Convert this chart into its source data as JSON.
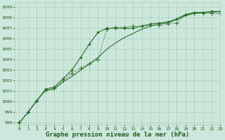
{
  "title": "Graphe pression niveau de la mer (hPa)",
  "background_color": "#cce8dc",
  "grid_color": "#aacfbe",
  "text_color": "#1e5c1e",
  "xlim": [
    -0.5,
    23
  ],
  "ylim": [
    997.8,
    1009.5
  ],
  "yticks": [
    998,
    999,
    1000,
    1001,
    1002,
    1003,
    1004,
    1005,
    1006,
    1007,
    1008,
    1009
  ],
  "xticks": [
    0,
    1,
    2,
    3,
    4,
    5,
    6,
    7,
    8,
    9,
    10,
    11,
    12,
    13,
    14,
    15,
    16,
    17,
    18,
    19,
    20,
    21,
    22,
    23
  ],
  "line1_x": [
    0,
    1,
    2,
    3,
    4,
    5,
    6,
    7,
    8,
    9,
    10,
    11,
    12,
    13,
    14,
    15,
    16,
    17,
    18,
    19,
    20,
    21,
    22,
    23
  ],
  "line1_y": [
    998.0,
    999.0,
    1000.1,
    1001.1,
    1001.3,
    1002.0,
    1002.7,
    1003.2,
    1003.6,
    1004.0,
    1006.9,
    1007.1,
    1007.1,
    1007.2,
    1007.2,
    1007.3,
    1007.3,
    1007.4,
    1007.5,
    1008.3,
    1008.4,
    1008.4,
    1008.4,
    1008.4
  ],
  "line2_x": [
    0,
    1,
    2,
    3,
    4,
    5,
    6,
    7,
    8,
    9,
    10,
    11,
    12,
    13,
    14,
    15,
    16,
    17,
    18,
    19,
    20,
    21,
    22,
    23
  ],
  "line2_y": [
    998.0,
    999.0,
    1000.1,
    1001.1,
    1001.2,
    1001.9,
    1002.4,
    1003.0,
    1003.6,
    1004.2,
    1005.0,
    1005.6,
    1006.1,
    1006.5,
    1006.9,
    1007.2,
    1007.4,
    1007.5,
    1007.8,
    1008.2,
    1008.4,
    1008.5,
    1008.5,
    1008.6
  ],
  "line3_x": [
    0,
    1,
    2,
    3,
    4,
    5,
    6,
    7,
    8,
    9,
    10,
    11,
    12,
    13,
    14,
    15,
    16,
    17,
    18,
    19,
    20,
    21,
    22,
    23
  ],
  "line3_y": [
    998.0,
    999.0,
    1000.1,
    1001.2,
    1001.4,
    1002.2,
    1003.0,
    1004.2,
    1005.5,
    1006.6,
    1007.0,
    1007.0,
    1007.0,
    1007.0,
    1007.2,
    1007.4,
    1007.5,
    1007.6,
    1007.9,
    1008.3,
    1008.5,
    1008.5,
    1008.6,
    1008.6
  ],
  "line_color": "#2d6e2d",
  "marker_dot": ".",
  "marker_plus": "+",
  "marker_size_dot": 3,
  "marker_size_plus": 4,
  "linewidth": 0.8,
  "title_fontsize": 6.5,
  "tick_fontsize": 4.5
}
